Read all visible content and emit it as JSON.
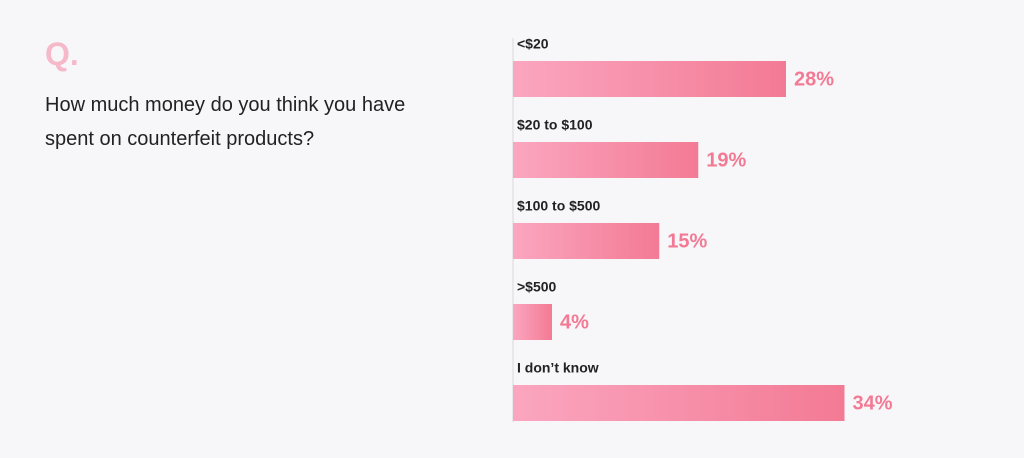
{
  "chart_data": {
    "type": "bar",
    "orientation": "horizontal",
    "label": "Q.",
    "title": "How much money do you think you have spent on counterfeit products?",
    "categories": [
      "<$20",
      "$20 to $100",
      "$100 to $500",
      ">$500",
      "I don’t know"
    ],
    "values": [
      28,
      19,
      15,
      4,
      34
    ],
    "value_labels": [
      "28%",
      "19%",
      "15%",
      "4%",
      "34%"
    ],
    "color": "#f37a94"
  }
}
